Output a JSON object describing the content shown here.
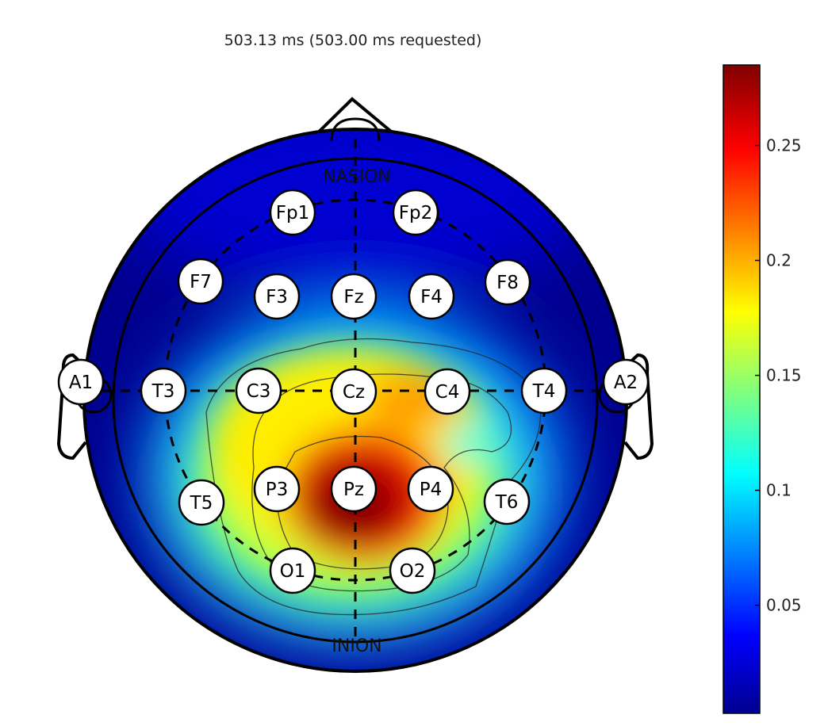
{
  "title": "503.13 ms (503.00 ms requested)",
  "landmarks": {
    "nasion": "NASION",
    "inion": "INION"
  },
  "electrodes": [
    "Fp1",
    "Fp2",
    "F7",
    "F3",
    "Fz",
    "F4",
    "F8",
    "A1",
    "T3",
    "C3",
    "Cz",
    "C4",
    "T4",
    "A2",
    "T5",
    "P3",
    "Pz",
    "P4",
    "T6",
    "O1",
    "O2"
  ],
  "colorbar": {
    "ticks": [
      "0.25",
      "0.2",
      "0.15",
      "0.1",
      "0.05"
    ],
    "range": [
      0.003,
      0.285
    ],
    "colormap": [
      "#00008f",
      "#0000ff",
      "#00ffff",
      "#ffff00",
      "#ff0000",
      "#800000"
    ]
  },
  "colors": {
    "outline": "#000000",
    "electrode_fill": "#ffffff",
    "background": "#ffffff"
  }
}
